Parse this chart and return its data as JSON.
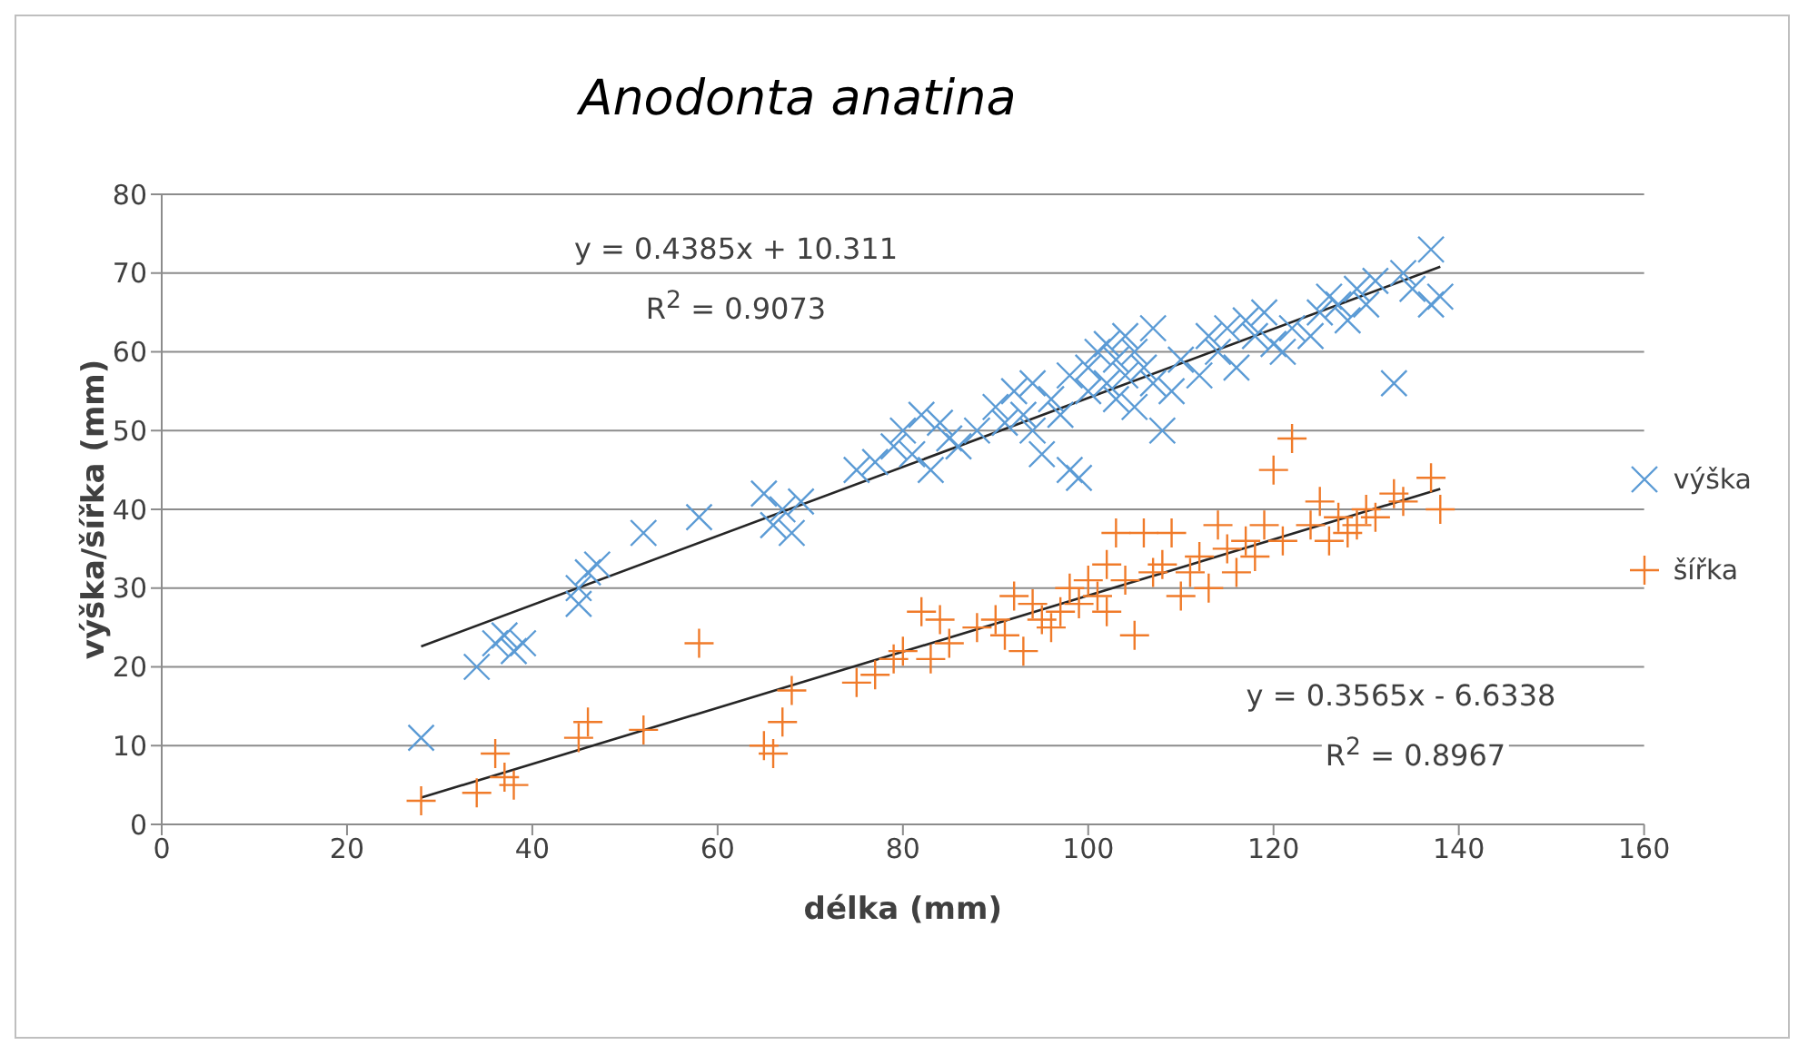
{
  "chart_data": {
    "type": "scatter",
    "title": "Anodonta anatina",
    "xlabel": "délka (mm)",
    "ylabel": "výška/šířka (mm)",
    "xlim": [
      0,
      160
    ],
    "xticks": [
      0,
      20,
      40,
      60,
      80,
      100,
      120,
      140,
      160
    ],
    "ylim": [
      0,
      80
    ],
    "yticks": [
      0,
      10,
      20,
      30,
      40,
      50,
      60,
      70,
      80
    ],
    "grid": "y",
    "legend": "right",
    "series": [
      {
        "name": "výška",
        "color": "#5b9bd5",
        "marker": "cross",
        "x": [
          28,
          34,
          36,
          37,
          38,
          39,
          45,
          45,
          46,
          47,
          52,
          58,
          65,
          66,
          67,
          68,
          69,
          75,
          77,
          79,
          80,
          81,
          82,
          83,
          84,
          85,
          86,
          88,
          90,
          91,
          92,
          93,
          94,
          94,
          95,
          96,
          97,
          98,
          98,
          99,
          100,
          100,
          101,
          102,
          102,
          103,
          103,
          104,
          104,
          105,
          105,
          106,
          107,
          107,
          108,
          109,
          110,
          112,
          113,
          114,
          115,
          116,
          117,
          118,
          119,
          120,
          121,
          122,
          124,
          125,
          126,
          127,
          128,
          129,
          130,
          131,
          133,
          134,
          135,
          137,
          137,
          138
        ],
        "values": [
          11,
          20,
          23,
          24,
          22,
          23,
          28,
          30,
          32,
          33,
          37,
          39,
          42,
          38,
          40,
          37,
          41,
          45,
          46,
          48,
          50,
          47,
          52,
          45,
          51,
          49,
          48,
          50,
          53,
          51,
          55,
          52,
          50,
          56,
          47,
          54,
          52,
          57,
          45,
          44,
          55,
          58,
          60,
          61,
          56,
          59,
          54,
          62,
          57,
          60,
          53,
          58,
          56,
          63,
          50,
          55,
          59,
          57,
          62,
          60,
          63,
          58,
          64,
          62,
          65,
          61,
          60,
          63,
          62,
          65,
          67,
          66,
          64,
          68,
          66,
          69,
          56,
          70,
          68,
          66,
          73,
          67
        ]
      },
      {
        "name": "šířka",
        "color": "#f07b2a",
        "marker": "plus",
        "x": [
          28,
          34,
          36,
          37,
          38,
          45,
          46,
          52,
          58,
          65,
          66,
          67,
          68,
          75,
          77,
          79,
          80,
          82,
          83,
          84,
          85,
          88,
          90,
          91,
          92,
          93,
          94,
          95,
          96,
          97,
          98,
          99,
          100,
          101,
          102,
          102,
          103,
          104,
          105,
          106,
          107,
          108,
          109,
          110,
          111,
          112,
          113,
          114,
          115,
          116,
          117,
          118,
          119,
          120,
          121,
          122,
          124,
          125,
          126,
          127,
          128,
          129,
          130,
          131,
          133,
          134,
          137,
          138
        ],
        "values": [
          3,
          4,
          9,
          6,
          5,
          11,
          13,
          12,
          23,
          10,
          9,
          13,
          17,
          18,
          19,
          21,
          22,
          27,
          21,
          26,
          23,
          25,
          26,
          24,
          29,
          22,
          28,
          26,
          25,
          27,
          30,
          28,
          31,
          29,
          33,
          27,
          37,
          31,
          24,
          37,
          32,
          33,
          37,
          29,
          32,
          34,
          30,
          38,
          35,
          32,
          36,
          34,
          38,
          45,
          36,
          49,
          38,
          41,
          36,
          39,
          37,
          38,
          40,
          39,
          42,
          41,
          44,
          40
        ]
      },
      {
        "type": "line",
        "color": "#262626",
        "x": [
          28,
          138
        ],
        "values": [
          22.6,
          70.8
        ]
      },
      {
        "type": "line",
        "color": "#262626",
        "x": [
          28,
          138
        ],
        "values": [
          3.4,
          42.6
        ]
      }
    ],
    "annotations": [
      "y = 0.4385x + 10.311",
      "R$^{2}$ = 0.9073",
      "y = 0.3565x - 6.6338",
      "R$^{2}$ = 0.8967"
    ]
  }
}
